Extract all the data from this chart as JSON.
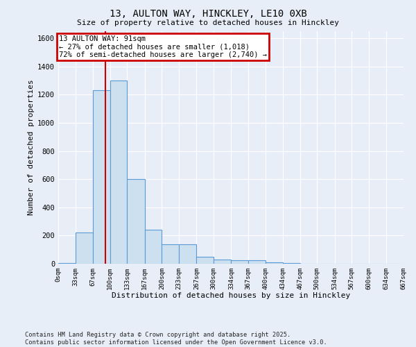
{
  "title_line1": "13, AULTON WAY, HINCKLEY, LE10 0XB",
  "title_line2": "Size of property relative to detached houses in Hinckley",
  "xlabel": "Distribution of detached houses by size in Hinckley",
  "ylabel": "Number of detached properties",
  "bin_labels": [
    "0sqm",
    "33sqm",
    "67sqm",
    "100sqm",
    "133sqm",
    "167sqm",
    "200sqm",
    "233sqm",
    "267sqm",
    "300sqm",
    "334sqm",
    "367sqm",
    "400sqm",
    "434sqm",
    "467sqm",
    "500sqm",
    "534sqm",
    "567sqm",
    "600sqm",
    "634sqm",
    "667sqm"
  ],
  "bin_edges": [
    0,
    33,
    67,
    100,
    133,
    167,
    200,
    233,
    267,
    300,
    334,
    367,
    400,
    434,
    467,
    500,
    534,
    567,
    600,
    634,
    667
  ],
  "bar_heights": [
    5,
    220,
    1230,
    1300,
    600,
    240,
    140,
    140,
    50,
    30,
    25,
    25,
    10,
    5,
    0,
    0,
    0,
    0,
    0,
    0
  ],
  "bar_color": "#cce0f0",
  "bar_edge_color": "#5b9bd5",
  "property_size": 91,
  "property_line_color": "#cc0000",
  "annotation_text": "13 AULTON WAY: 91sqm\n← 27% of detached houses are smaller (1,018)\n72% of semi-detached houses are larger (2,740) →",
  "annotation_box_color": "#ffffff",
  "annotation_box_edge": "#cc0000",
  "ylim": [
    0,
    1650
  ],
  "yticks": [
    0,
    200,
    400,
    600,
    800,
    1000,
    1200,
    1400,
    1600
  ],
  "background_color": "#e8eef8",
  "grid_color": "#ffffff",
  "footer_line1": "Contains HM Land Registry data © Crown copyright and database right 2025.",
  "footer_line2": "Contains public sector information licensed under the Open Government Licence v3.0."
}
